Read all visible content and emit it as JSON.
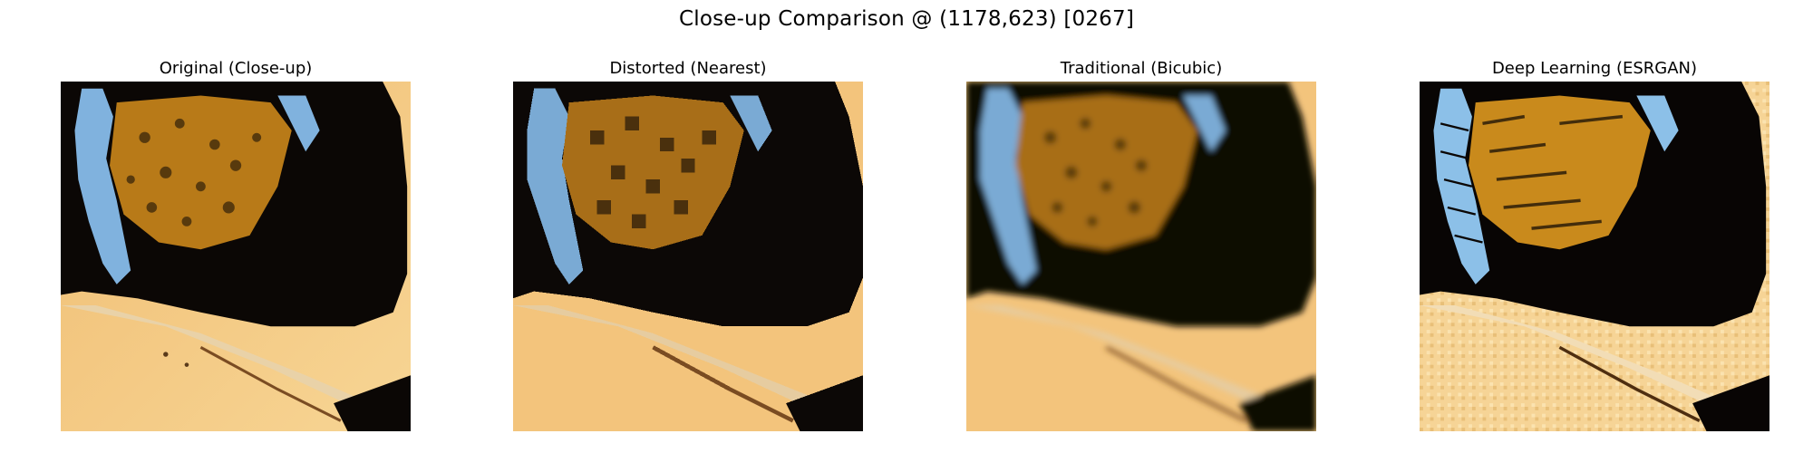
{
  "figure": {
    "title": "Close-up Comparison @ (1178,623) [0267]"
  },
  "panels": [
    {
      "id": "original",
      "title": "Original (Close-up)",
      "style": "sharp"
    },
    {
      "id": "nearest",
      "title": "Distorted (Nearest)",
      "style": "blocky"
    },
    {
      "id": "bicubic",
      "title": "Traditional (Bicubic)",
      "style": "blurred"
    },
    {
      "id": "esrgan",
      "title": "Deep Learning (ESRGAN)",
      "style": "oversharpened"
    }
  ],
  "palette": {
    "wing_orange": "#f3c27a",
    "wing_light": "#f8d896",
    "black_patch": "#0c0806",
    "amber_spots": "#c98a1c",
    "blue_scales": "#7fb0dc",
    "vein_brown": "#8a5a2a"
  }
}
